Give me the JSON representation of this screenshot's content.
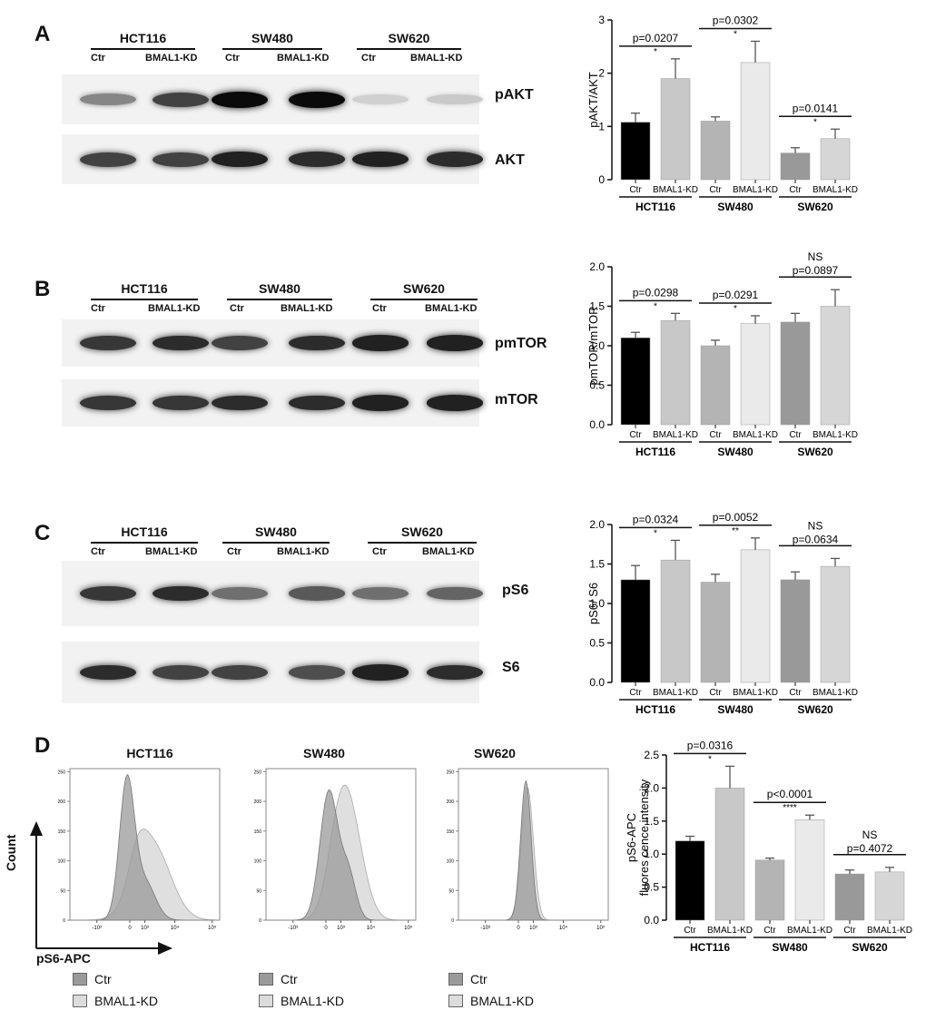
{
  "panels": {
    "A": {
      "letter": "A",
      "groups": [
        "HCT116",
        "SW480",
        "SW620"
      ],
      "lanes": [
        "Ctr",
        "BMAL1-KD"
      ],
      "blots": [
        {
          "label": "pAKT",
          "intensity": [
            0.45,
            0.75,
            1.0,
            1.0,
            0.12,
            0.15
          ]
        },
        {
          "label": "AKT",
          "intensity": [
            0.75,
            0.75,
            0.9,
            0.85,
            0.9,
            0.85
          ]
        }
      ]
    },
    "B": {
      "letter": "B",
      "groups": [
        "HCT116",
        "SW480",
        "SW620"
      ],
      "lanes": [
        "Ctr",
        "BMAL1-KD"
      ],
      "blots": [
        {
          "label": "pmTOR",
          "intensity": [
            0.8,
            0.85,
            0.75,
            0.85,
            0.9,
            0.9
          ]
        },
        {
          "label": "mTOR",
          "intensity": [
            0.8,
            0.8,
            0.85,
            0.85,
            0.9,
            0.9
          ]
        }
      ]
    },
    "C": {
      "letter": "C",
      "groups": [
        "HCT116",
        "SW480",
        "SW620"
      ],
      "lanes": [
        "Ctr",
        "BMAL1-KD"
      ],
      "blots": [
        {
          "label": "pS6",
          "intensity": [
            0.8,
            0.85,
            0.55,
            0.65,
            0.55,
            0.6
          ]
        },
        {
          "label": "S6",
          "intensity": [
            0.85,
            0.75,
            0.75,
            0.7,
            0.9,
            0.85
          ]
        }
      ]
    },
    "D": {
      "letter": "D",
      "hist_titles": [
        "HCT116",
        "SW480",
        "SW620"
      ],
      "axis_x": "pS6-APC",
      "axis_y": "Count",
      "legend": [
        "Ctr",
        "BMAL1-KD"
      ],
      "x_ticks": [
        "-10³",
        "0",
        "10³",
        "10⁴",
        "10⁵"
      ],
      "y_ticks": [
        "0",
        "50",
        "100",
        "150",
        "200",
        "250"
      ]
    }
  },
  "colors": {
    "ctr_hct": "#000000",
    "kd_hct": "#c8c8c8",
    "ctr_sw480": "#b4b4b4",
    "kd_sw480": "#eaeaea",
    "ctr_sw620": "#999999",
    "kd_sw620": "#d6d6d6",
    "hist_ctr": "#9a9a9a",
    "hist_kd": "#dcdcdc"
  },
  "chart_data": [
    {
      "type": "bar",
      "panel": "A",
      "ylabel": "pAKT/AKT",
      "ylim": [
        0,
        3
      ],
      "yticks": [
        0,
        1,
        2,
        3
      ],
      "categories": [
        "Ctr",
        "BMAL1-KD",
        "Ctr",
        "BMAL1-KD",
        "Ctr",
        "BMAL1-KD"
      ],
      "groups": [
        "HCT116",
        "SW480",
        "SW620"
      ],
      "values": [
        1.08,
        1.9,
        1.1,
        2.2,
        0.5,
        0.77
      ],
      "errors": [
        0.17,
        0.37,
        0.08,
        0.4,
        0.1,
        0.18
      ],
      "annotations": [
        {
          "p": "p=0.0207",
          "sig": "*",
          "group": 0
        },
        {
          "p": "p=0.0302",
          "sig": "*",
          "group": 1
        },
        {
          "p": "p=0.0141",
          "sig": "*",
          "group": 2
        }
      ]
    },
    {
      "type": "bar",
      "panel": "B",
      "ylabel": "pmTOR/mTOR",
      "ylim": [
        0,
        2.0
      ],
      "yticks": [
        "0.0",
        "0.5",
        "1.0",
        "1.5",
        "2.0"
      ],
      "categories": [
        "Ctr",
        "BMAL1-KD",
        "Ctr",
        "BMAL1-KD",
        "Ctr",
        "BMAL1-KD"
      ],
      "groups": [
        "HCT116",
        "SW480",
        "SW620"
      ],
      "values": [
        1.1,
        1.32,
        1.0,
        1.28,
        1.3,
        1.5
      ],
      "errors": [
        0.07,
        0.09,
        0.07,
        0.1,
        0.11,
        0.21
      ],
      "annotations": [
        {
          "p": "p=0.0298",
          "sig": "*",
          "group": 0
        },
        {
          "p": "p=0.0291",
          "sig": "*",
          "group": 1
        },
        {
          "p": "p=0.0897",
          "sig": "NS",
          "group": 2
        }
      ]
    },
    {
      "type": "bar",
      "panel": "C",
      "ylabel": "pS6/ S6",
      "ylim": [
        0,
        2.0
      ],
      "yticks": [
        "0.0",
        "0.5",
        "1.0",
        "1.5",
        "2.0"
      ],
      "categories": [
        "Ctr",
        "BMAL1-KD",
        "Ctr",
        "BMAL1-KD",
        "Ctr",
        "BMAL1-KD"
      ],
      "groups": [
        "HCT116",
        "SW480",
        "SW620"
      ],
      "values": [
        1.3,
        1.55,
        1.27,
        1.68,
        1.3,
        1.47
      ],
      "errors": [
        0.18,
        0.25,
        0.1,
        0.15,
        0.1,
        0.1
      ],
      "annotations": [
        {
          "p": "p=0.0324",
          "sig": "*",
          "group": 0
        },
        {
          "p": "p=0.0052",
          "sig": "**",
          "group": 1
        },
        {
          "p": "p=0.0634",
          "sig": "NS",
          "group": 2
        }
      ]
    },
    {
      "type": "bar",
      "panel": "D",
      "ylabel": "pS6-APC fluores cence intensity",
      "ylim": [
        0,
        2.5
      ],
      "yticks": [
        "0.0",
        "0.5",
        "1.0",
        "1.5",
        "2.0",
        "2.5"
      ],
      "categories": [
        "Ctr",
        "BMAL1-KD",
        "Ctr",
        "BMAL1-KD",
        "Ctr",
        "BMAL1-KD"
      ],
      "groups": [
        "HCT116",
        "SW480",
        "SW620"
      ],
      "values": [
        1.2,
        2.0,
        0.91,
        1.52,
        0.7,
        0.73
      ],
      "errors": [
        0.07,
        0.33,
        0.03,
        0.07,
        0.06,
        0.07
      ],
      "annotations": [
        {
          "p": "p=0.0316",
          "sig": "*",
          "group": 0
        },
        {
          "p": "p<0.0001",
          "sig": "****",
          "group": 1
        },
        {
          "p": "p=0.4072",
          "sig": "NS",
          "group": 2
        }
      ]
    }
  ]
}
